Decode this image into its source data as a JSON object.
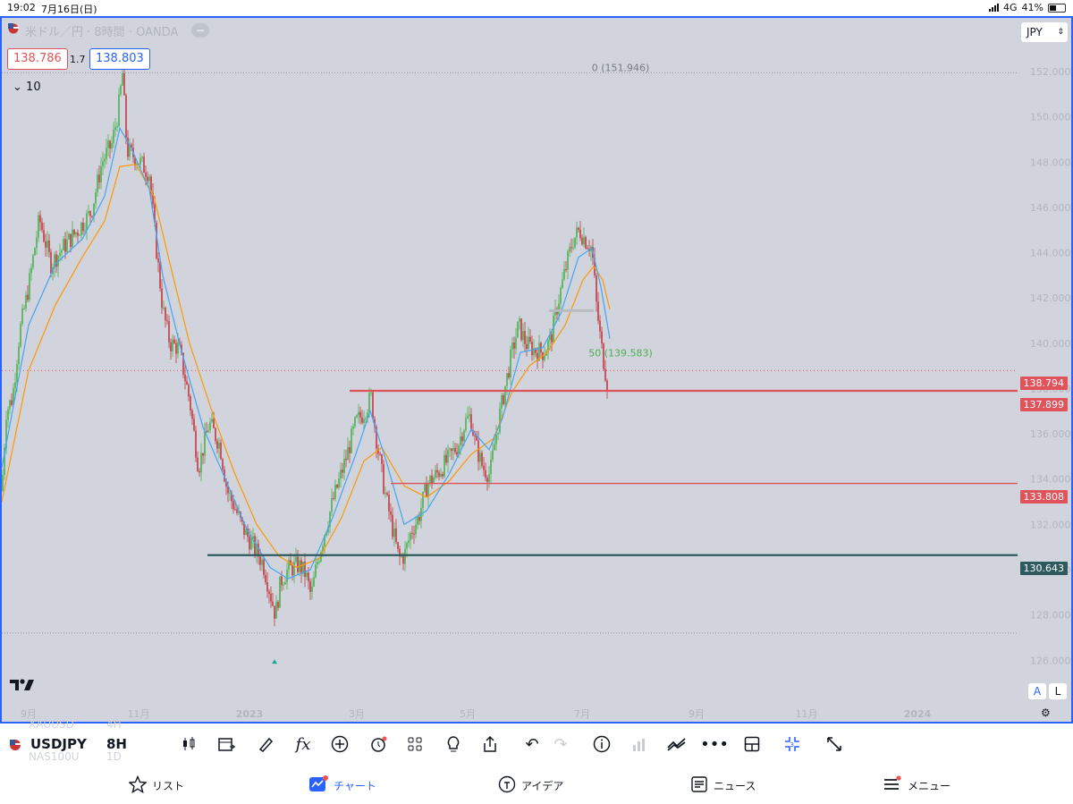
{
  "status_bar": {
    "time": "19:02",
    "date": "7月16日(日)",
    "network": "4G",
    "battery": "41%"
  },
  "chart_header": {
    "title": "米ドル／円 · 8時間 · OANDA",
    "sell_price": "138.786",
    "spread": "1.7",
    "buy_price": "138.803",
    "indicator_collapse": "10",
    "currency_button": "JPY",
    "scale_auto": "A",
    "scale_log": "L",
    "brand_logo": "TV"
  },
  "annotations": {
    "fib_0": "0 (151.946)",
    "fib_50": "50 (139.583)"
  },
  "colors": {
    "background": "#d1d4dc",
    "up": "#26a69a",
    "down": "#ef5350",
    "ema_fast": "#42a5f5",
    "ema_slow": "#ff9800",
    "red_line": "#e0535a",
    "teal_line": "#2e5a5e",
    "accent": "#2962ff"
  },
  "chart_data": {
    "type": "candlestick",
    "symbol": "USDJPY",
    "timeframe": "8H",
    "y_ticks": [
      "152.000",
      "150.000",
      "148.000",
      "146.000",
      "144.000",
      "142.000",
      "140.000",
      "138.000",
      "136.000",
      "134.000",
      "132.000",
      "130.000",
      "128.000",
      "126.000"
    ],
    "y_ticks_values": [
      152,
      150,
      148,
      146,
      144,
      142,
      140,
      138,
      136,
      134,
      132,
      130,
      128,
      126
    ],
    "ylim": [
      125.6,
      153.0
    ],
    "x_ticks": [
      "9月",
      "11月",
      "2023",
      "3月",
      "5月",
      "7月",
      "9月",
      "11月",
      "2024"
    ],
    "price_path": [
      [
        0,
        133.5
      ],
      [
        5,
        137
      ],
      [
        12,
        137.6
      ],
      [
        20,
        140.5
      ],
      [
        30,
        142.5
      ],
      [
        42,
        145.5
      ],
      [
        55,
        143.5
      ],
      [
        70,
        144.3
      ],
      [
        85,
        145
      ],
      [
        100,
        145.8
      ],
      [
        112,
        148
      ],
      [
        123,
        148.8
      ],
      [
        130,
        150.2
      ],
      [
        135,
        151.9
      ],
      [
        140,
        148.5
      ],
      [
        150,
        148.2
      ],
      [
        165,
        147.5
      ],
      [
        172,
        144.5
      ],
      [
        180,
        141.5
      ],
      [
        188,
        140
      ],
      [
        198,
        139.8
      ],
      [
        210,
        137.5
      ],
      [
        220,
        134.5
      ],
      [
        232,
        136.5
      ],
      [
        244,
        135.5
      ],
      [
        252,
        133.5
      ],
      [
        260,
        132.8
      ],
      [
        270,
        131.8
      ],
      [
        282,
        131
      ],
      [
        292,
        130.3
      ],
      [
        300,
        129
      ],
      [
        306,
        128
      ],
      [
        312,
        129.5
      ],
      [
        320,
        130
      ],
      [
        332,
        130.2
      ],
      [
        340,
        129.8
      ],
      [
        346,
        128.8
      ],
      [
        352,
        130.2
      ],
      [
        360,
        131.5
      ],
      [
        370,
        133
      ],
      [
        384,
        134.8
      ],
      [
        396,
        136.5
      ],
      [
        404,
        136.9
      ],
      [
        413,
        137.6
      ],
      [
        420,
        135.5
      ],
      [
        428,
        133.5
      ],
      [
        436,
        132
      ],
      [
        444,
        130.5
      ],
      [
        450,
        130.6
      ],
      [
        458,
        131.7
      ],
      [
        466,
        132.3
      ],
      [
        476,
        133.8
      ],
      [
        486,
        134.2
      ],
      [
        498,
        134.8
      ],
      [
        510,
        135.5
      ],
      [
        518,
        136.5
      ],
      [
        524,
        136.8
      ],
      [
        530,
        135.5
      ],
      [
        538,
        134.5
      ],
      [
        546,
        134.2
      ],
      [
        552,
        135.8
      ],
      [
        560,
        137.5
      ],
      [
        570,
        139.5
      ],
      [
        578,
        140.8
      ],
      [
        586,
        140
      ],
      [
        596,
        139.7
      ],
      [
        606,
        139.6
      ],
      [
        614,
        140.2
      ],
      [
        622,
        141.8
      ],
      [
        630,
        143.2
      ],
      [
        638,
        144.5
      ],
      [
        646,
        145
      ],
      [
        652,
        144.6
      ],
      [
        660,
        144.2
      ],
      [
        665,
        141.7
      ],
      [
        670,
        140
      ],
      [
        674,
        139
      ],
      [
        678,
        138
      ]
    ],
    "ema_fast_path": [
      [
        0,
        134.5
      ],
      [
        30,
        140.8
      ],
      [
        60,
        143.5
      ],
      [
        90,
        144.6
      ],
      [
        115,
        146.5
      ],
      [
        132,
        149.5
      ],
      [
        145,
        148.6
      ],
      [
        165,
        146.8
      ],
      [
        180,
        143
      ],
      [
        200,
        139.8
      ],
      [
        225,
        136.3
      ],
      [
        250,
        134
      ],
      [
        275,
        131.7
      ],
      [
        300,
        130.1
      ],
      [
        320,
        129.6
      ],
      [
        345,
        130
      ],
      [
        370,
        132.3
      ],
      [
        395,
        135
      ],
      [
        412,
        137
      ],
      [
        430,
        134.8
      ],
      [
        450,
        132
      ],
      [
        475,
        132.6
      ],
      [
        500,
        134.2
      ],
      [
        525,
        136.2
      ],
      [
        545,
        135.3
      ],
      [
        560,
        136.7
      ],
      [
        580,
        139.6
      ],
      [
        605,
        139.8
      ],
      [
        625,
        141.3
      ],
      [
        645,
        143.8
      ],
      [
        660,
        144.2
      ],
      [
        670,
        142.5
      ],
      [
        680,
        140.2
      ]
    ],
    "ema_slow_path": [
      [
        0,
        133
      ],
      [
        30,
        138.8
      ],
      [
        60,
        141.7
      ],
      [
        90,
        143.8
      ],
      [
        115,
        145.4
      ],
      [
        132,
        147.8
      ],
      [
        150,
        147.9
      ],
      [
        170,
        146.5
      ],
      [
        190,
        143.2
      ],
      [
        210,
        140
      ],
      [
        235,
        137
      ],
      [
        260,
        134.3
      ],
      [
        285,
        132
      ],
      [
        310,
        130.6
      ],
      [
        330,
        130.1
      ],
      [
        355,
        130.5
      ],
      [
        380,
        132.3
      ],
      [
        405,
        134.8
      ],
      [
        425,
        135.4
      ],
      [
        450,
        133.7
      ],
      [
        475,
        133.2
      ],
      [
        500,
        133.9
      ],
      [
        525,
        135.1
      ],
      [
        550,
        135.8
      ],
      [
        570,
        137.8
      ],
      [
        590,
        139
      ],
      [
        610,
        139.6
      ],
      [
        630,
        140.8
      ],
      [
        650,
        142.8
      ],
      [
        662,
        143.4
      ],
      [
        672,
        142.8
      ],
      [
        680,
        141.5
      ]
    ],
    "horizontal_levels": [
      {
        "value": 137.899,
        "label": "137.899",
        "color": "red",
        "x_start": 389
      },
      {
        "value": 133.808,
        "label": "133.808",
        "color": "red",
        "x_start": 435
      },
      {
        "value": 130.643,
        "label": "130.643",
        "color": "teal",
        "x_start": 230
      }
    ],
    "current_price": {
      "value": 138.794,
      "label": "138.794"
    },
    "fib_levels": [
      {
        "value": 151.946,
        "label": "0 (151.946)"
      },
      {
        "value": 139.583,
        "label": "50 (139.583)"
      }
    ],
    "low_marker_value": 127.2
  },
  "toolbar": {
    "symbol": "USDJPY",
    "timeframe": "8H",
    "watch_symbol_1": "XAUUSD",
    "watch_symbol_2": "NAS100U",
    "watch_tf_1": "4H",
    "watch_tf_2": "1D",
    "icons": [
      "candles-icon",
      "calendar-icon",
      "draw-icon",
      "indicators-icon",
      "add-icon",
      "alert-icon",
      "layouts-icon",
      "ideas-icon",
      "share-icon",
      "undo-icon",
      "redo-icon",
      "info-icon",
      "volume-icon",
      "compare-icon",
      "more-icon",
      "layout-icon",
      "fullscreen-exit-icon",
      "expand-icon"
    ]
  },
  "tabs": [
    {
      "label": "リスト",
      "icon": "star-icon"
    },
    {
      "label": "チャート",
      "icon": "chart-icon",
      "active": true
    },
    {
      "label": "アイデア",
      "icon": "bulb-icon"
    },
    {
      "label": "ニュース",
      "icon": "news-icon"
    },
    {
      "label": "メニュー",
      "icon": "menu-icon"
    }
  ]
}
